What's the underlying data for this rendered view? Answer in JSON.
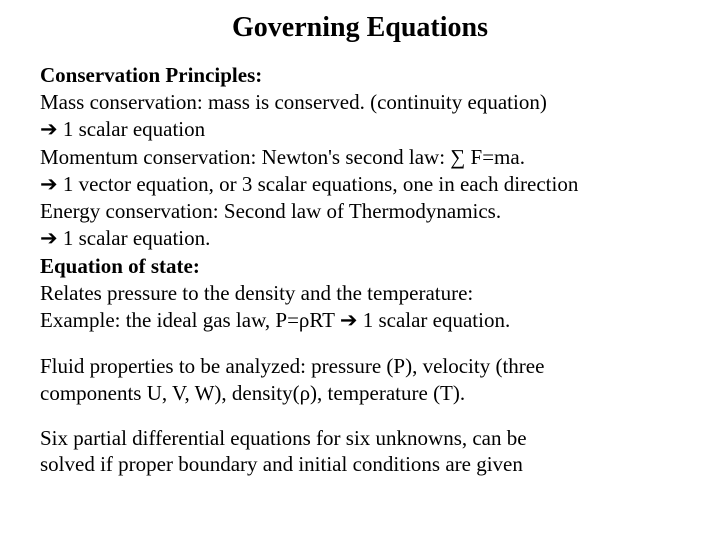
{
  "title": "Governing Equations",
  "lines": {
    "h1": "Conservation Principles:",
    "l1": "Mass conservation: mass is conserved. (continuity equation)",
    "l2a": "➔",
    "l2b": " 1 scalar equation",
    "l3a": "Momentum conservation: Newton's second law: ",
    "l3b": "∑",
    "l3c": " F=ma.",
    "l4a": "➔",
    "l4b": " 1 vector equation, or 3 scalar equations, one in each direction",
    "l5": "Energy conservation: Second law of Thermodynamics.",
    "l6a": "➔",
    "l6b": " 1 scalar equation.",
    "h2": "Equation of state:",
    "l7": "Relates pressure to the density and the temperature:",
    "l8a": "Example: the ideal gas law, P=ρRT ",
    "l8b": "➔",
    "l8c": " 1 scalar equation.",
    "l9": "Fluid properties to be analyzed: pressure (P), velocity (three",
    "l10": "components U, V, W), density(ρ), temperature (T).",
    "l11": "Six partial differential equations for six unknowns, can be",
    "l12": "solved if proper boundary and initial conditions are given"
  },
  "colors": {
    "text": "#000000",
    "background": "#ffffff"
  },
  "typography": {
    "title_fontsize": 28,
    "body_fontsize": 21,
    "font_family": "Times New Roman"
  }
}
